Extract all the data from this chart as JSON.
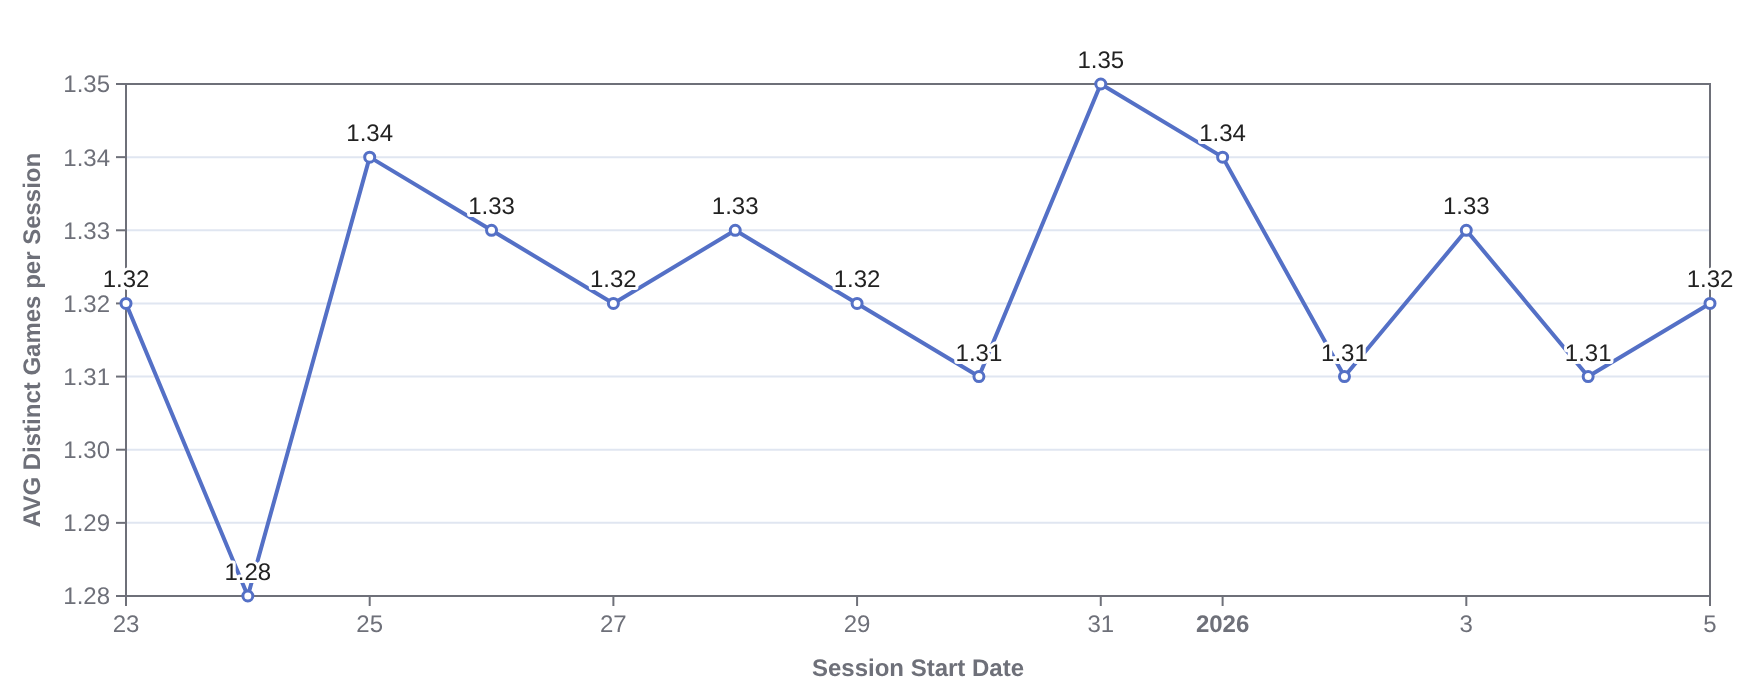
{
  "chart_data": {
    "type": "line",
    "xlabel": "Session Start Date",
    "ylabel": "AVG Distinct Games per Session",
    "x": [
      "2025-12-23",
      "2025-12-24",
      "2025-12-25",
      "2025-12-26",
      "2025-12-27",
      "2025-12-28",
      "2025-12-29",
      "2025-12-30",
      "2025-12-31",
      "2026-01-01",
      "2026-01-02",
      "2026-01-03",
      "2026-01-04",
      "2026-01-05"
    ],
    "series": [
      {
        "color": "#5470c6",
        "values": [
          1.32,
          1.28,
          1.34,
          1.33,
          1.32,
          1.33,
          1.32,
          1.31,
          1.35,
          1.34,
          1.31,
          1.33,
          1.31,
          1.32
        ]
      }
    ],
    "xlim": [
      "2025-12-23",
      "2026-01-05"
    ],
    "xticks": [
      {
        "value": "2025-12-23",
        "label": "23"
      },
      {
        "value": "2025-12-25",
        "label": "25"
      },
      {
        "value": "2025-12-27",
        "label": "27"
      },
      {
        "value": "2025-12-29",
        "label": "29"
      },
      {
        "value": "2025-12-31",
        "label": "31"
      },
      {
        "value": "2026-01-01",
        "label": "2026"
      },
      {
        "value": "2026-01-03",
        "label": "3"
      },
      {
        "value": "2026-01-05",
        "label": "5"
      }
    ],
    "ylim": [
      1.28,
      1.35
    ],
    "yticks": [
      1.28,
      1.29,
      {
        "value": 1.3,
        "label": "1.30"
      },
      1.31,
      1.32,
      1.33,
      1.34,
      1.35
    ],
    "grid": "y",
    "marker": "circle",
    "line_style": "solid",
    "data_labels": true
  }
}
